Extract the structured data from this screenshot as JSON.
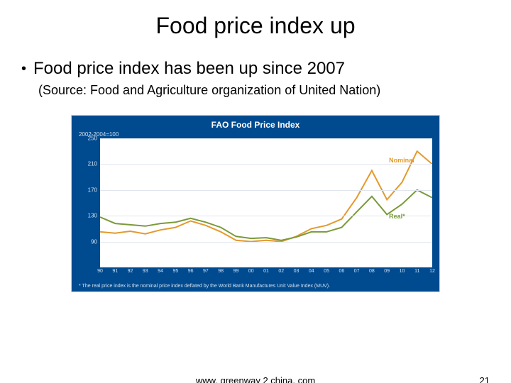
{
  "slide": {
    "title": "Food price index up",
    "bullet": "Food price index has been up since 2007",
    "source": "(Source: Food and Agriculture organization of United Nation)",
    "footer_url": "www. greenway 2 china. com",
    "page_number": "21"
  },
  "chart": {
    "type": "line",
    "title": "FAO Food Price Index",
    "baseline_label": "2002-2004=100",
    "footnote": "* The real price index is the nominal price index deflated by the World Bank Manufactures Unit Value Index (MUV).",
    "background_color": "#004a8f",
    "plot_background": "#ffffff",
    "grid_color": "#e0e6ec",
    "text_color_light": "#cfe0f0",
    "ylim": [
      50,
      250
    ],
    "ytick_step": 40,
    "yticks": [
      90,
      130,
      170,
      210,
      250
    ],
    "ymin_display": 50,
    "x_categories": [
      "90",
      "91",
      "92",
      "93",
      "94",
      "95",
      "96",
      "97",
      "98",
      "99",
      "00",
      "01",
      "02",
      "03",
      "04",
      "05",
      "06",
      "07",
      "08",
      "09",
      "10",
      "11",
      "12"
    ],
    "series": [
      {
        "name": "Nominal",
        "color": "#e39a2e",
        "line_width": 2,
        "label_pos": {
          "x_frac": 0.87,
          "y_value": 215
        },
        "points": [
          105,
          103,
          106,
          102,
          108,
          112,
          122,
          115,
          105,
          92,
          90,
          92,
          90,
          98,
          110,
          115,
          125,
          158,
          200,
          155,
          182,
          230,
          210
        ]
      },
      {
        "name": "Real*",
        "color": "#7a9a3a",
        "line_width": 2,
        "label_pos": {
          "x_frac": 0.87,
          "y_value": 128
        },
        "points": [
          128,
          118,
          116,
          114,
          118,
          120,
          126,
          120,
          112,
          98,
          95,
          96,
          92,
          97,
          105,
          105,
          112,
          136,
          160,
          132,
          148,
          170,
          158
        ]
      }
    ],
    "title_fontsize": 12,
    "axis_fontsize": 8
  }
}
